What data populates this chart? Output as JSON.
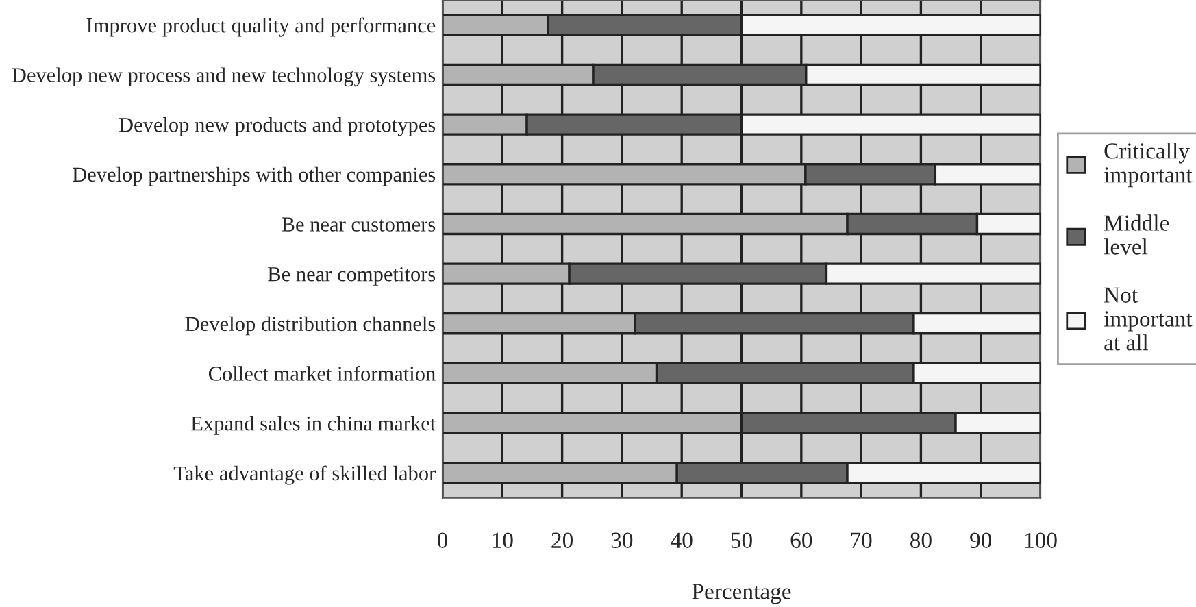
{
  "chart_data": {
    "type": "bar",
    "orientation": "horizontal",
    "stacked": true,
    "xlabel": "Percentage",
    "categories": [
      "Improve product quality and performance",
      "Develop new process and new technology systems",
      "Develop new products and prototypes",
      "Develop partnerships with other companies",
      "Be near customers",
      "Be near competitors",
      "Develop distribution channels",
      "Collect market information",
      "Expand sales in china market",
      "Take advantage of skilled labor"
    ],
    "series": [
      {
        "name": "Critically\nimportant",
        "color": "#b3b3b3",
        "values": [
          17.6,
          25.2,
          14.1,
          60.7,
          67.7,
          21.2,
          32.2,
          35.8,
          50,
          39.2
        ]
      },
      {
        "name": "Middle\nlevel",
        "color": "#666666",
        "values": [
          32.4,
          35.6,
          35.9,
          21.7,
          21.7,
          43,
          46.6,
          43,
          35.8,
          28.5
        ]
      },
      {
        "name": "Not\nimportant\nat all",
        "color": "#f5f5f5",
        "values": [
          50,
          39.2,
          50,
          17.6,
          10.6,
          35.8,
          21.2,
          21.2,
          14.2,
          32.3
        ]
      }
    ],
    "xlim": [
      0,
      100
    ],
    "xticks": [
      0,
      10,
      20,
      30,
      40,
      50,
      60,
      70,
      80,
      90,
      100
    ],
    "grid": "x",
    "legend": "right"
  }
}
